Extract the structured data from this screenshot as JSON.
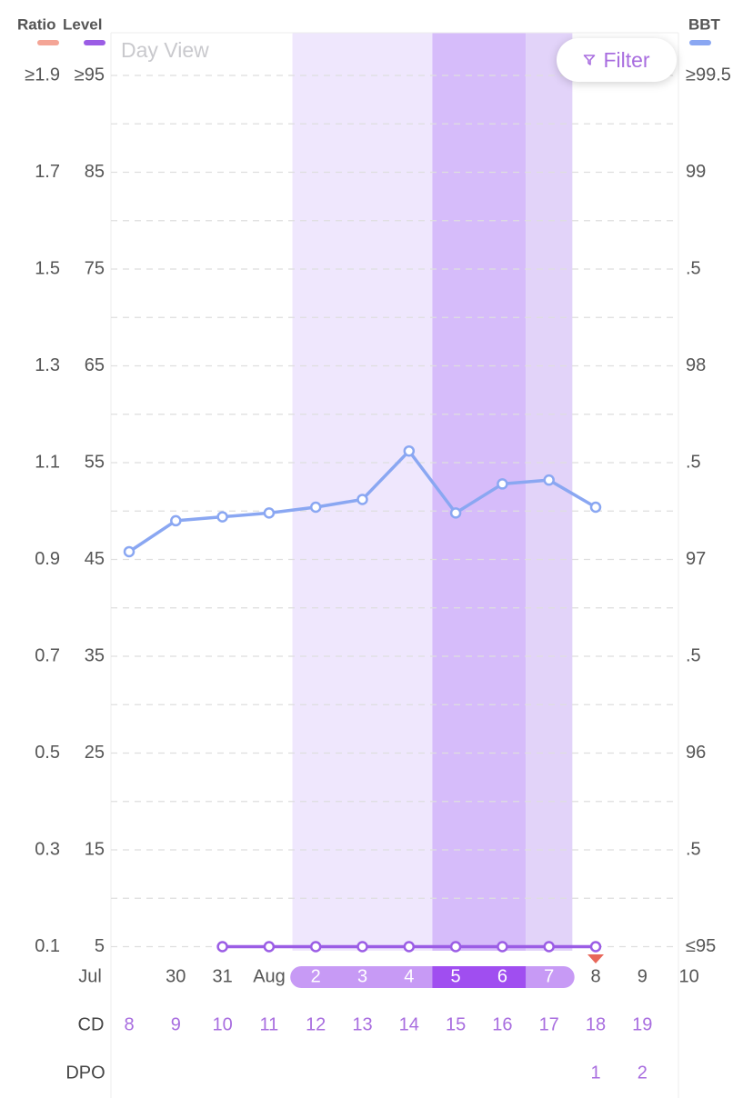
{
  "header": {
    "ratio_label": "Ratio",
    "level_label": "Level",
    "bbt_label": "BBT",
    "view_label": "Day View",
    "filter_label": "Filter"
  },
  "colors": {
    "ratio": "#f4a596",
    "level": "#9b5de5",
    "bbt": "#8aa7f2",
    "fertile_light": "#efe7fd",
    "fertile_medium": "#e2d3f9",
    "fertile_dark": "#d6bcfa",
    "pill_light": "#c79af5",
    "pill_dark": "#a04ef0",
    "accent_text": "#a86ddf",
    "period_marker": "#e8675a"
  },
  "chart_data": {
    "type": "line",
    "ratio_ticks": [
      "≥1.9",
      "1.7",
      "1.5",
      "1.3",
      "1.1",
      "0.9",
      "0.7",
      "0.5",
      "0.3",
      "0.1"
    ],
    "level_ticks": [
      "≥95",
      "85",
      "75",
      "65",
      "55",
      "45",
      "35",
      "25",
      "15",
      "5"
    ],
    "bbt_ticks": [
      "≥99.5",
      "99",
      ".5",
      "98",
      ".5",
      "97",
      ".5",
      "96",
      ".5",
      "≤95"
    ],
    "level_ylim": [
      5,
      95
    ],
    "bbt_ylim": [
      95,
      99.5
    ],
    "x": {
      "dates": [
        "Jul",
        "30",
        "31",
        "Aug",
        "2",
        "3",
        "4",
        "5",
        "6",
        "7",
        "8",
        "9",
        "10"
      ],
      "cd_label": "CD",
      "cd": [
        "8",
        "9",
        "10",
        "11",
        "12",
        "13",
        "14",
        "15",
        "16",
        "17",
        "18",
        "19",
        ""
      ],
      "dpo_label": "DPO",
      "dpo": [
        "",
        "",
        "",
        "",
        "",
        "",
        "",
        "",
        "",
        "",
        "1",
        "2",
        ""
      ]
    },
    "fertile_days": [
      "2",
      "3",
      "4",
      "5",
      "6",
      "7"
    ],
    "peak_days": [
      "5",
      "6"
    ],
    "period_marker_day": "8",
    "series": [
      {
        "name": "BBT",
        "values": [
          97.04,
          97.2,
          97.22,
          97.24,
          97.27,
          97.31,
          97.56,
          97.24,
          97.39,
          97.41,
          97.27,
          null,
          null
        ]
      },
      {
        "name": "Level",
        "values": [
          null,
          null,
          5,
          5,
          5,
          5,
          5,
          5,
          5,
          5,
          5,
          null,
          null
        ]
      }
    ],
    "grid": true
  }
}
